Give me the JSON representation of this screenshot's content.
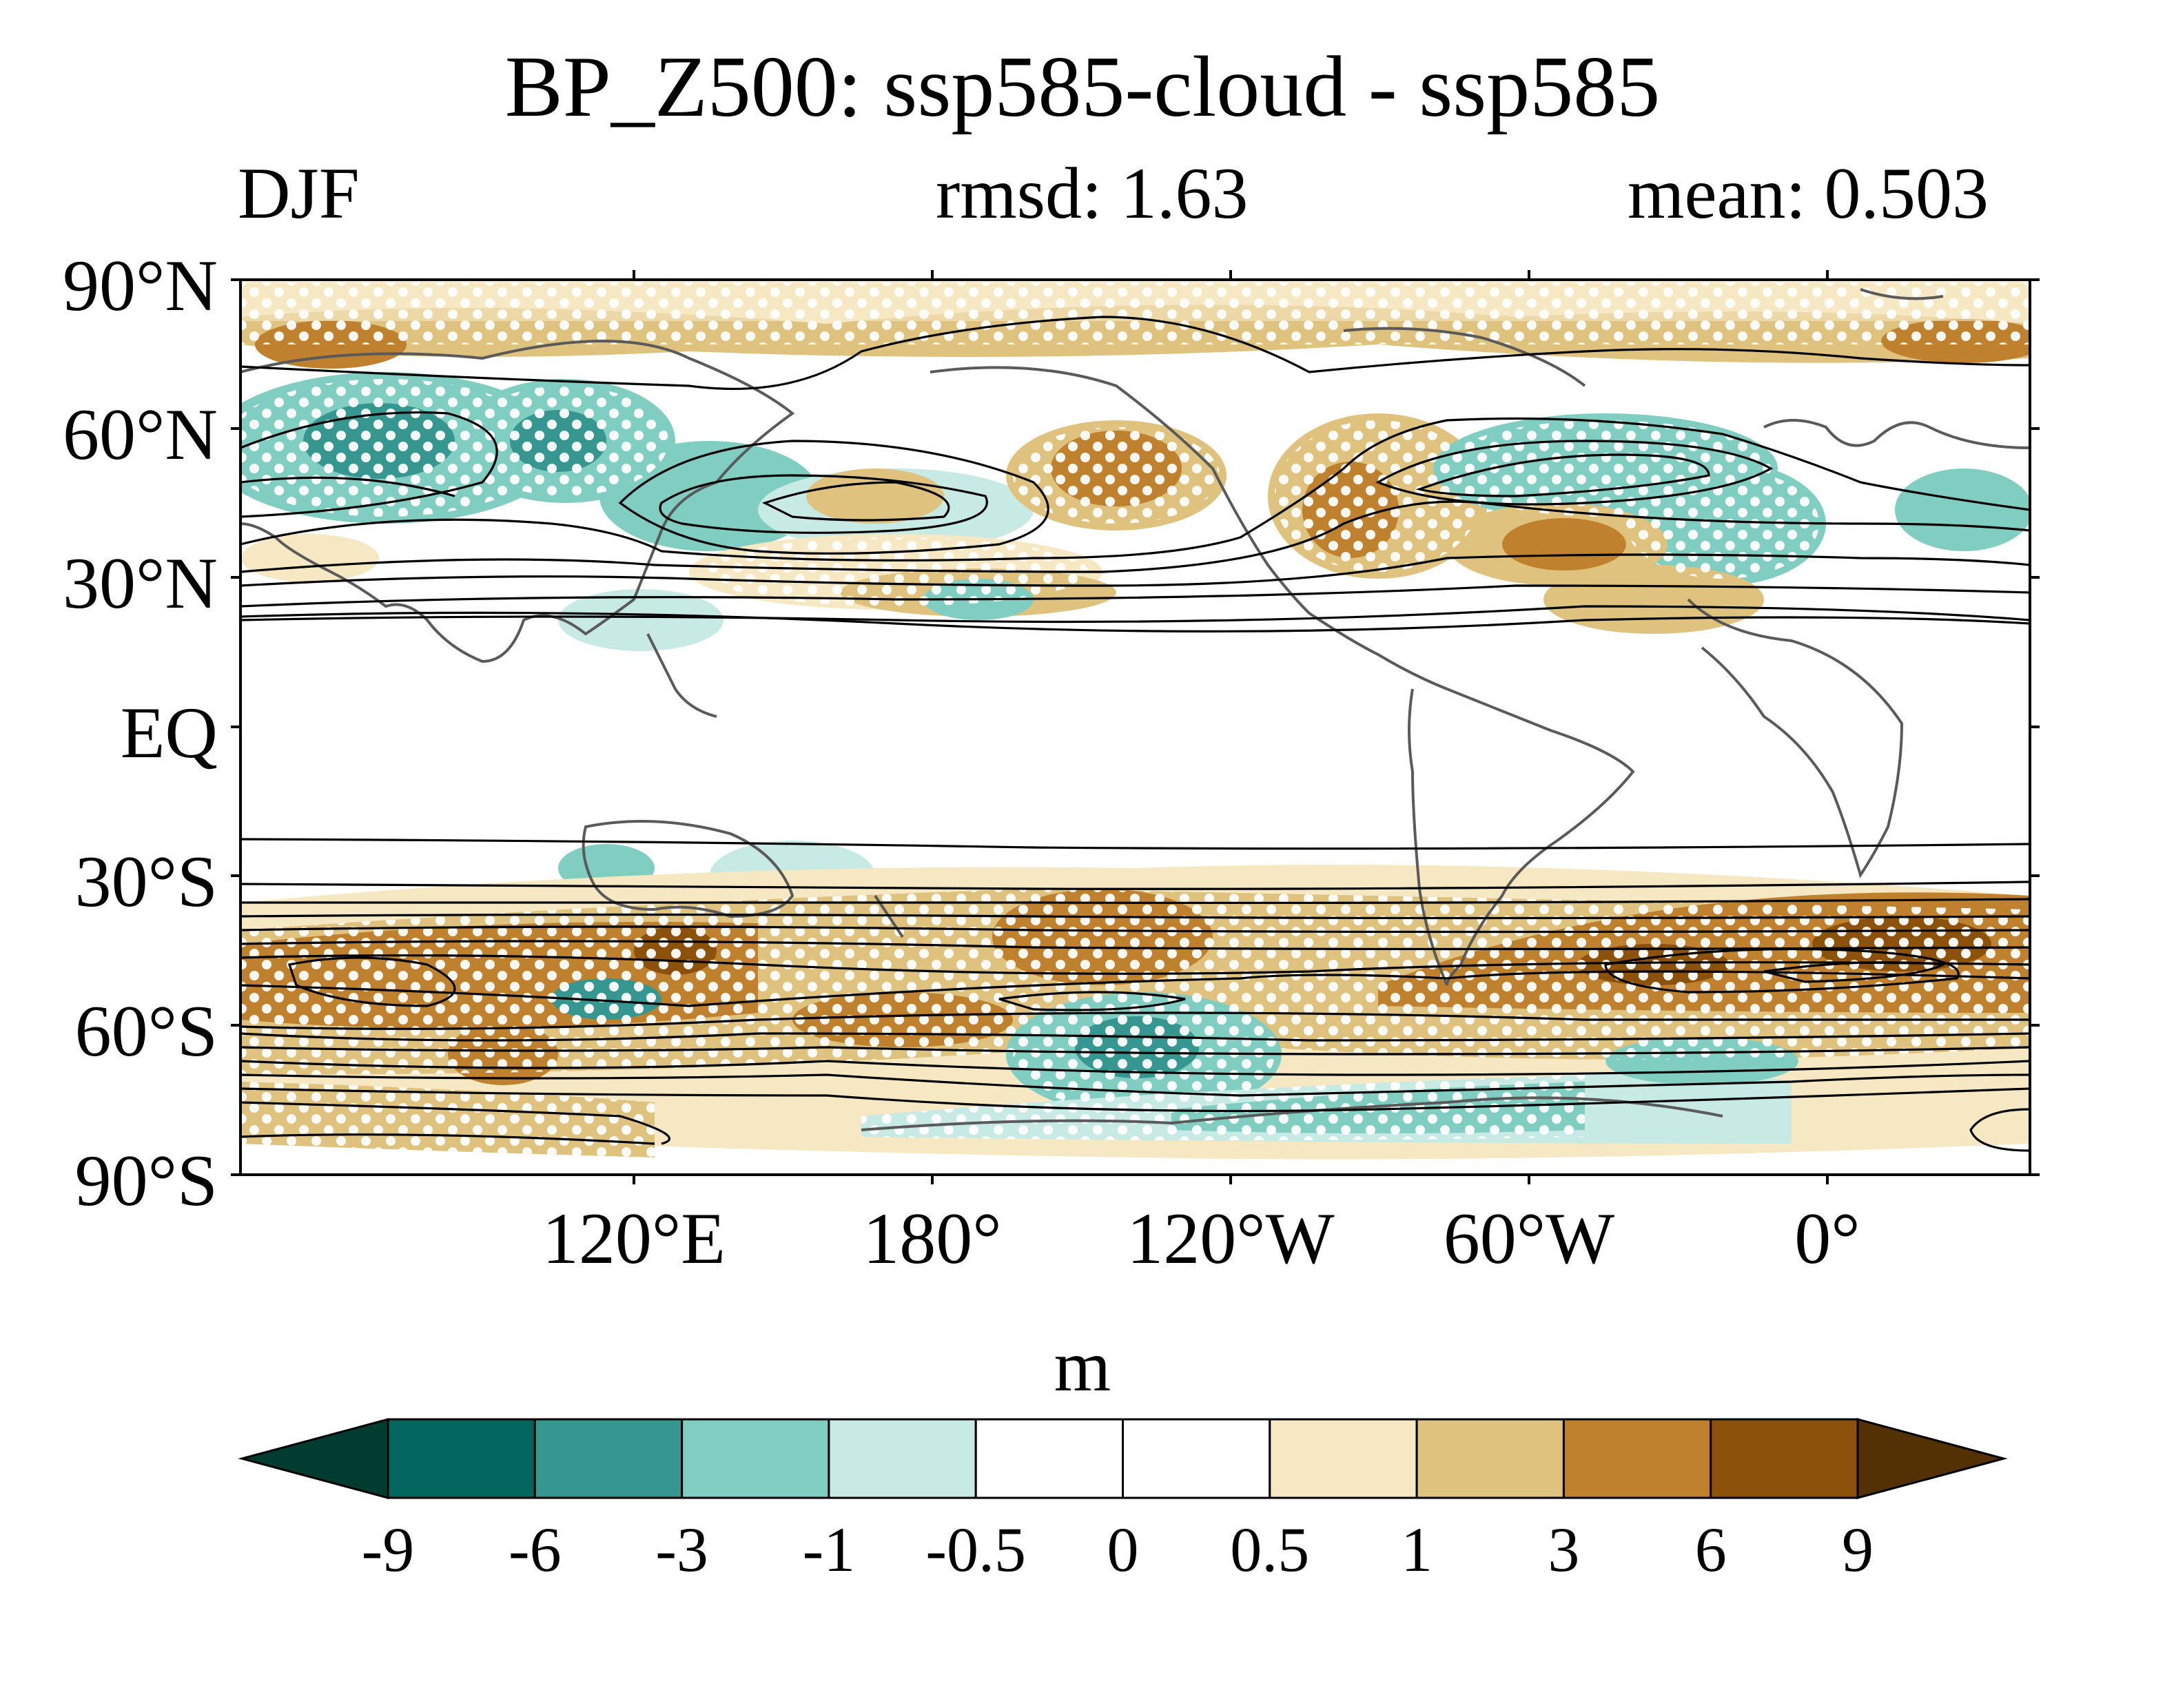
{
  "title": "BP_Z500: ssp585-cloud - ssp585",
  "left_subtitle": "DJF",
  "center_subtitle": "rmsd: 1.63",
  "right_subtitle": "mean: 0.503",
  "map": {
    "projection": "cylindrical equidistant, Pacific-centered",
    "lon_range": [
      -1,
      359
    ],
    "lat_range": [
      -90,
      90
    ],
    "y_ticks": [
      "90°N",
      "60°N",
      "30°N",
      "EQ",
      "30°S",
      "60°S",
      "90°S"
    ],
    "x_ticks": [
      "120°E",
      "180°",
      "120°W",
      "60°W",
      "0°"
    ],
    "shading": "BP_Z500 difference (ssp585-cloud minus ssp585)",
    "contours": "black line contours of the ssp585 field",
    "stippling": "white dots for significant areas",
    "coastline_color": "#5a5a5a"
  },
  "colorbar": {
    "unit": "m",
    "labels": [
      "-9",
      "-6",
      "-3",
      "-1",
      "-0.5",
      "0",
      "0.5",
      "1",
      "3",
      "6",
      "9"
    ],
    "colors": [
      "#013c30",
      "#03665e",
      "#35978f",
      "#80cdc1",
      "#c7eae5",
      "#ffffff",
      "#ffffff",
      "#f6e8c3",
      "#dfc27d",
      "#bf812d",
      "#8c510a",
      "#543005"
    ]
  }
}
